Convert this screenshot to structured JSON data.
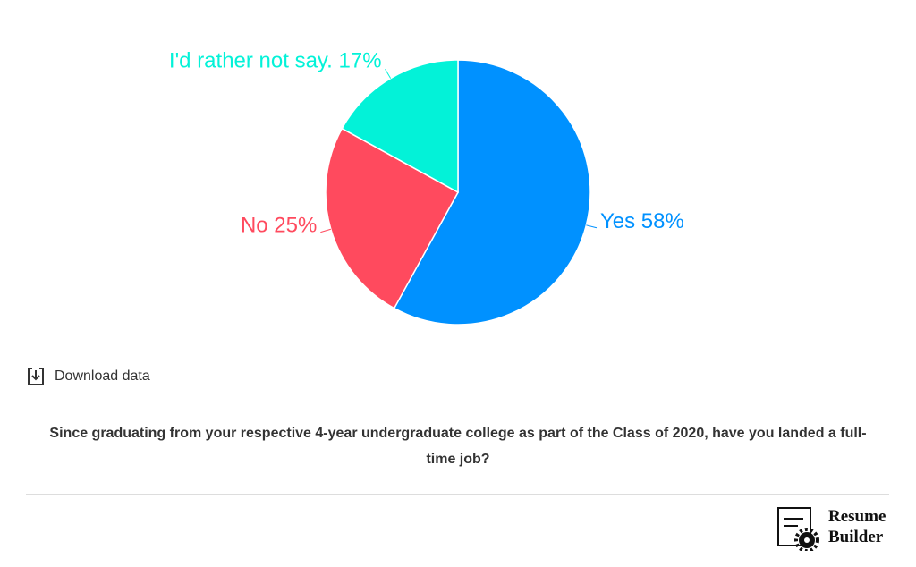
{
  "chart_data": {
    "type": "pie",
    "categories": [
      "Yes",
      "No",
      "I'd rather not say."
    ],
    "values": [
      58,
      25,
      17
    ],
    "value_labels": [
      "58%",
      "25%",
      "17%"
    ],
    "colors": [
      "#0091ff",
      "#ff4a5e",
      "#03f2d8"
    ]
  },
  "download_label": "Download data",
  "caption": "Since graduating from your respective 4-year undergraduate college as part of the Class of 2020, have you landed a full-time job?",
  "logo": [
    "Resume",
    "Builder"
  ]
}
